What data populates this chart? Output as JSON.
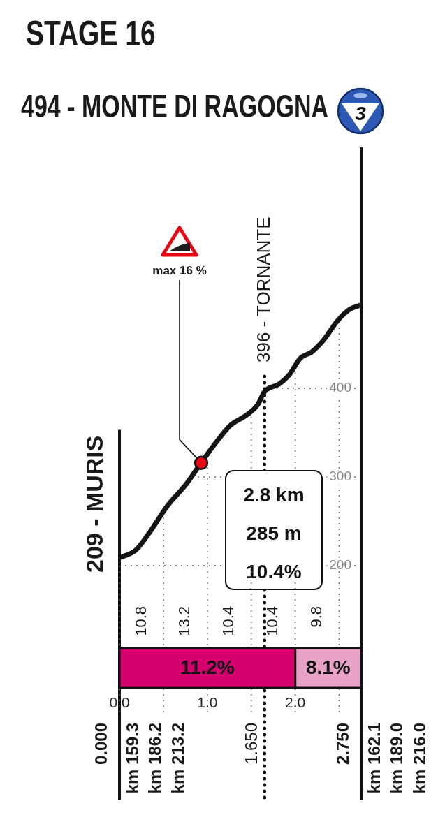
{
  "chart_data": [
    {
      "type": "line",
      "title": "STAGE 16",
      "subtitle": "494 - MONTE DI RAGOGNA",
      "x": [
        0,
        0.18,
        0.34,
        0.55,
        0.76,
        0.93,
        1.1,
        1.26,
        1.45,
        1.57,
        1.65,
        1.82,
        1.93,
        2.06,
        2.19,
        2.32,
        2.48,
        2.62,
        2.75
      ],
      "series": [
        {
          "color": "#141414",
          "values": [
            209,
            217,
            237,
            268,
            292,
            316,
            339,
            358,
            370,
            381,
            396,
            405,
            415,
            434,
            441,
            454,
            476,
            489,
            494
          ]
        }
      ],
      "xlim": [
        0,
        2.75
      ],
      "xticks": [
        0,
        0.5,
        1,
        1.5,
        2,
        2.5
      ],
      "ylim": [
        200,
        670
      ],
      "yticks": [
        200,
        300,
        400
      ],
      "grid": true,
      "tick_labels": "y",
      "ref_lines": [
        {
          "axis": "x",
          "value": 0,
          "label": "209 - MURIS"
        },
        {
          "axis": "x",
          "value": 1.65,
          "label": "396 - TORNANTE",
          "line_style": "dotted"
        }
      ],
      "annotations": [
        {
          "text": "max 16 %",
          "x": 0.93,
          "y": 316
        },
        "3",
        "2.8 km",
        "285 m",
        "10.4%",
        "0.000",
        "km 159.3",
        "km 186.2",
        "km 213.2",
        "1.650",
        "2.750",
        "km 162.1",
        "km 189.0",
        "km 216.0"
      ]
    },
    {
      "type": "bar",
      "orientation": "horizontal",
      "stacked": true,
      "categories": [
        null
      ],
      "series": [
        {
          "name": "11.2%",
          "color": "#d5006e",
          "values": [
            2
          ]
        },
        {
          "name": "8.1%",
          "color": "#e9a2c7",
          "values": [
            0.75
          ]
        }
      ],
      "xlim": [
        0,
        2.75
      ],
      "xticks": [
        {
          "value": 0,
          "label": "0.0"
        },
        {
          "value": 0.5,
          "label": null
        },
        {
          "value": 1,
          "label": "1.0"
        },
        {
          "value": 1.5,
          "label": null
        },
        {
          "value": 2,
          "label": "2.0"
        },
        {
          "value": 2.5,
          "label": null
        }
      ],
      "tick_labels": "x",
      "grid": "x",
      "annotations": [
        "10.8",
        "13.2",
        "10.4",
        "10.4",
        "9.8"
      ]
    }
  ]
}
